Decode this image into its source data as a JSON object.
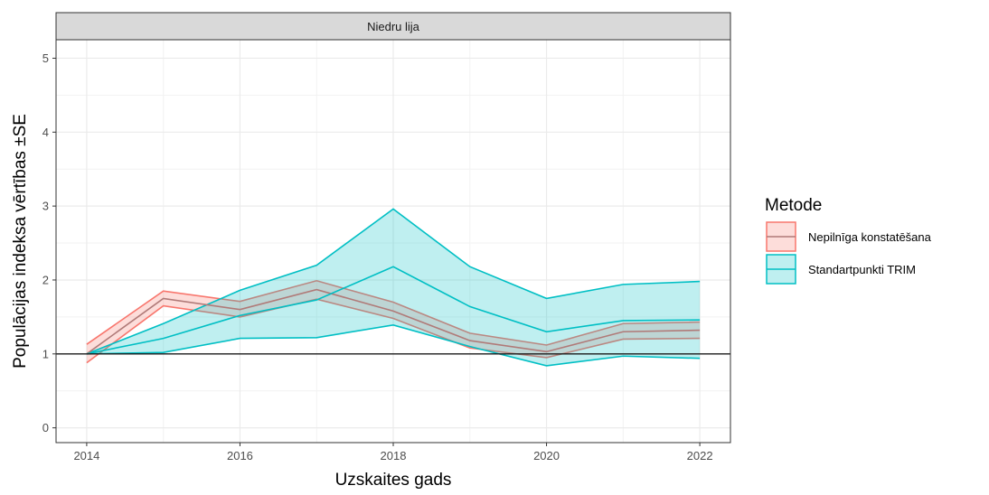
{
  "chart_data": {
    "type": "line",
    "facet_title": "Niedru lija",
    "xlabel": "Uzskaites gads",
    "ylabel": "Populācijas indeksa vērtības ±SE",
    "xlim": [
      2013.6,
      2022.4
    ],
    "ylim": [
      -0.2,
      5.25
    ],
    "x_ticks": [
      2014,
      2016,
      2018,
      2020,
      2022
    ],
    "y_ticks": [
      0,
      1,
      2,
      3,
      4,
      5
    ],
    "reference_line": 1,
    "grid": true,
    "legend": {
      "title": "Metode",
      "position": "right"
    },
    "x": [
      2014,
      2015,
      2016,
      2017,
      2018,
      2019,
      2020,
      2021,
      2022
    ],
    "series": [
      {
        "name": "Nepilnīga konstatēšana",
        "color": "#F8766D",
        "fill": "#F8766D",
        "values": [
          1.0,
          1.75,
          1.6,
          1.87,
          1.58,
          1.18,
          1.03,
          1.3,
          1.32
        ],
        "lower": [
          0.88,
          1.65,
          1.5,
          1.74,
          1.48,
          1.08,
          0.95,
          1.2,
          1.21
        ],
        "upper": [
          1.13,
          1.85,
          1.71,
          1.99,
          1.7,
          1.28,
          1.12,
          1.41,
          1.43
        ]
      },
      {
        "name": "Standartpunkti TRIM",
        "color": "#00BFC4",
        "fill": "#00BFC4",
        "values": [
          1.0,
          1.21,
          1.52,
          1.73,
          2.18,
          1.64,
          1.3,
          1.45,
          1.46
        ],
        "lower": [
          1.0,
          1.02,
          1.21,
          1.22,
          1.39,
          1.1,
          0.84,
          0.97,
          0.94
        ],
        "upper": [
          1.0,
          1.41,
          1.86,
          2.2,
          2.96,
          2.18,
          1.75,
          1.94,
          1.98
        ]
      }
    ]
  }
}
